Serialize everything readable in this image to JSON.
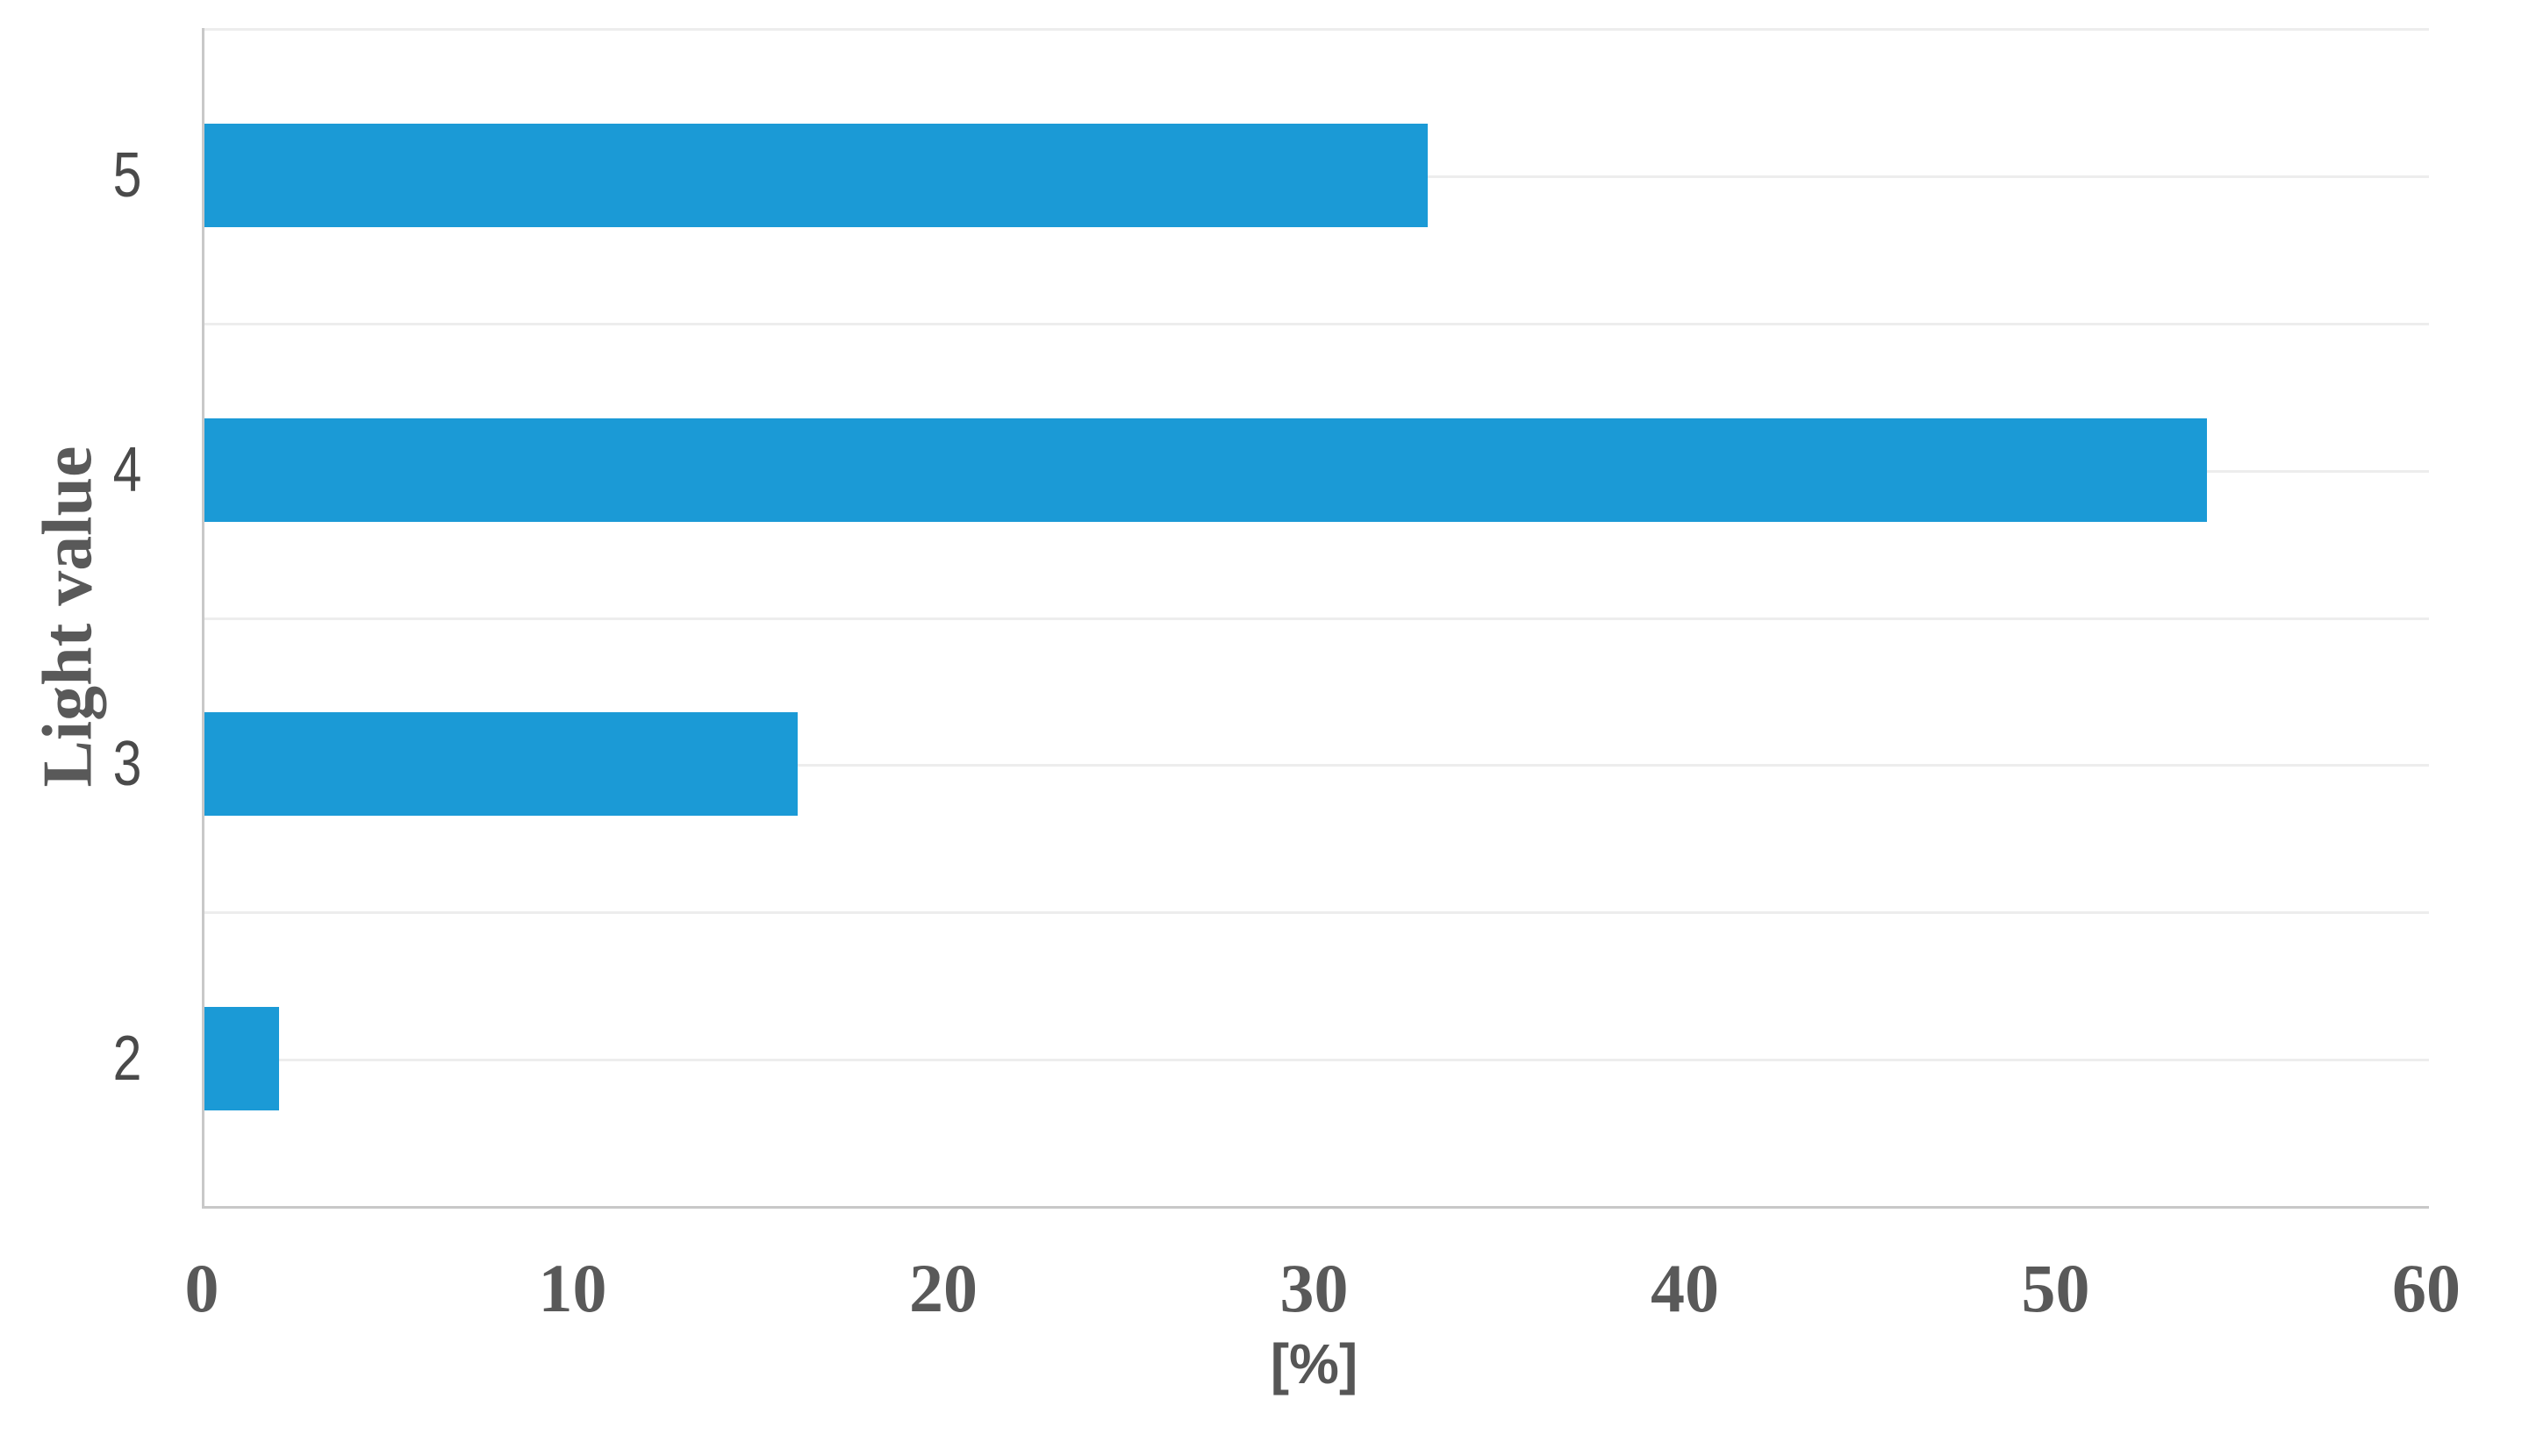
{
  "figure": {
    "background_color": "#ffffff",
    "xlabel": "[%]",
    "ylabel": "Light value"
  },
  "chart_data": {
    "type": "bar",
    "orientation": "horizontal",
    "title": "",
    "categories": [
      "5",
      "4",
      "3",
      "2"
    ],
    "values": [
      33,
      54,
      16,
      2
    ],
    "xlabel": "[%]",
    "ylabel": "Light value",
    "xlim": [
      0,
      60
    ],
    "x_ticks": [
      0,
      10,
      20,
      30,
      40,
      50,
      60
    ],
    "grid": "faint horizontal lines at category centers and boundaries",
    "legend": "none",
    "bar_color": "#1b9ad6",
    "axis_line_color": "#c8c8c8",
    "gridline_color": "#ededed",
    "tick_label_color": "#595959",
    "category_label_color": "#4a4a4a"
  }
}
